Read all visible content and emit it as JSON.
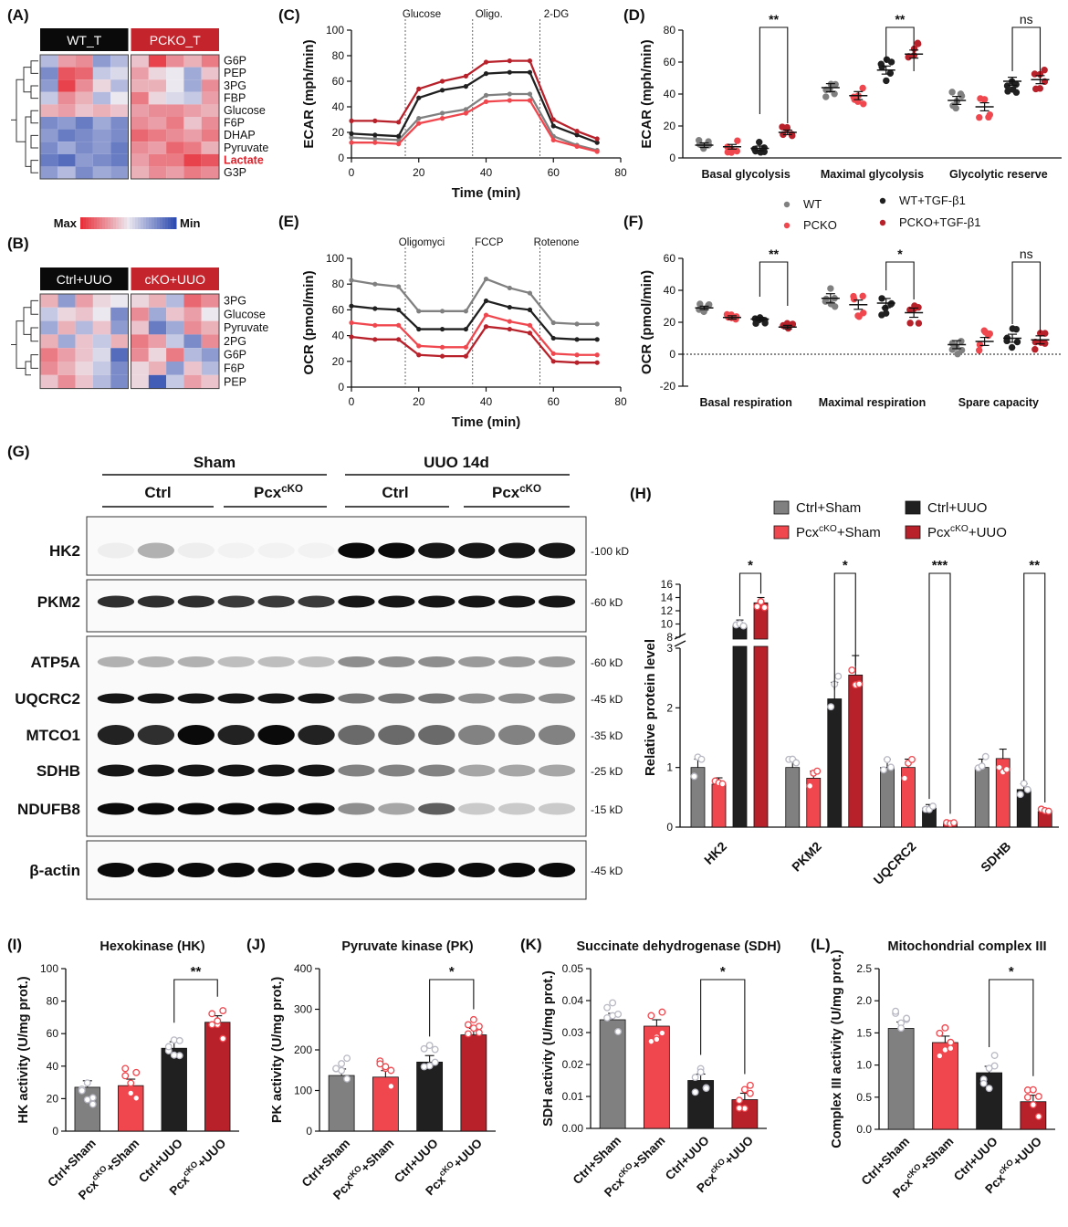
{
  "colors": {
    "wt": "#808080",
    "pcko": "#f0474e",
    "wt_tgf": "#202020",
    "pcko_tgf": "#b8202a",
    "heat_max": "#e8303a",
    "heat_mid": "#ece8f0",
    "heat_min": "#2f4db0"
  },
  "panel_labels": [
    "(A)",
    "(B)",
    "(C)",
    "(D)",
    "(E)",
    "(F)",
    "(G)",
    "(H)",
    "(I)",
    "(J)",
    "(K)",
    "(L)"
  ],
  "heatmap_a": {
    "groups": [
      "WT_T",
      "PCKO_T"
    ],
    "rows": [
      "G6P",
      "PEP",
      "3PG",
      "FBP",
      "Glucose",
      "F6P",
      "DHAP",
      "Pyruvate",
      "Lactate",
      "G3P"
    ],
    "highlight_row": "Lactate",
    "values": [
      [
        -0.3,
        0.4,
        0.5,
        -0.5,
        -0.3,
        0.2,
        0.9,
        0.5,
        0.3,
        0.6
      ],
      [
        -0.6,
        0.8,
        0.7,
        -0.2,
        -0.1,
        0.4,
        0.1,
        0.0,
        -0.4,
        0.2
      ],
      [
        -0.5,
        0.9,
        0.5,
        0.1,
        -0.3,
        0.3,
        0.3,
        0.0,
        -0.4,
        0.5
      ],
      [
        -0.2,
        0.5,
        0.3,
        -0.3,
        0.0,
        0.6,
        0.1,
        -0.1,
        -0.2,
        0.4
      ],
      [
        0.3,
        0.4,
        0.2,
        0.3,
        0.2,
        0.4,
        0.5,
        0.5,
        0.4,
        0.3
      ],
      [
        -0.6,
        -0.5,
        -0.7,
        -0.4,
        -0.6,
        0.5,
        0.4,
        0.6,
        0.2,
        0.5
      ],
      [
        -0.5,
        -0.7,
        -0.6,
        -0.5,
        -0.6,
        0.7,
        0.6,
        0.5,
        0.4,
        0.6
      ],
      [
        -0.6,
        -0.4,
        -0.6,
        -0.5,
        -0.7,
        0.5,
        0.4,
        0.7,
        0.6,
        0.3
      ],
      [
        -0.7,
        -0.8,
        -0.5,
        -0.6,
        -0.7,
        0.4,
        0.6,
        0.6,
        0.9,
        0.8
      ],
      [
        -0.5,
        -0.3,
        -0.6,
        -0.4,
        -0.5,
        0.3,
        0.5,
        0.4,
        0.6,
        0.5
      ]
    ]
  },
  "legend_scale": {
    "max": "Max",
    "min": "Min"
  },
  "heatmap_b": {
    "groups": [
      "Ctrl+UUO",
      "cKO+UUO"
    ],
    "rows": [
      "3PG",
      "Glucose",
      "Pyruvate",
      "2PG",
      "G6P",
      "F6P",
      "PEP"
    ],
    "values": [
      [
        0.3,
        -0.5,
        0.4,
        0.1,
        0.0,
        0.1,
        0.3,
        -0.3,
        0.7,
        0.5
      ],
      [
        -0.2,
        0.1,
        0.2,
        0.0,
        -0.6,
        0.5,
        -0.4,
        0.2,
        0.4,
        0.0
      ],
      [
        -0.4,
        0.3,
        -0.3,
        0.2,
        -0.5,
        0.2,
        -0.7,
        -0.4,
        0.5,
        0.3
      ],
      [
        0.3,
        -0.4,
        0.2,
        -0.2,
        0.3,
        0.6,
        0.4,
        -0.2,
        -0.6,
        0.5
      ],
      [
        0.6,
        0.4,
        0.2,
        -0.1,
        -0.8,
        0.5,
        0.1,
        0.6,
        -0.3,
        -0.5
      ],
      [
        0.5,
        0.3,
        0.1,
        -0.2,
        -0.6,
        0.1,
        0.3,
        -0.5,
        0.2,
        -0.3
      ],
      [
        0.2,
        0.5,
        0.2,
        -0.3,
        -0.6,
        0.1,
        -0.9,
        -0.2,
        0.4,
        0.2
      ]
    ]
  },
  "chart_data": [
    {
      "panel": "C",
      "type": "line",
      "ylabel": "ECAR (mph/min)",
      "xlabel": "Time (min)",
      "xlim": [
        0,
        80
      ],
      "ylim": [
        0,
        100
      ],
      "xticks": [
        "0",
        "20",
        "40",
        "60",
        "80"
      ],
      "yticks": [
        "0",
        "20",
        "40",
        "60",
        "80",
        "100"
      ],
      "injections": [
        {
          "label": "Glucose",
          "x": 16
        },
        {
          "label": "Oligo.",
          "x": 36
        },
        {
          "label": "2-DG",
          "x": 56
        }
      ],
      "x": [
        0,
        7,
        14,
        20,
        27,
        34,
        40,
        47,
        53,
        60,
        67,
        73
      ],
      "series": [
        {
          "name": "WT",
          "values": [
            16,
            15,
            14,
            31,
            35,
            38,
            49,
            50,
            50,
            17,
            10,
            6
          ]
        },
        {
          "name": "PCKO",
          "values": [
            12,
            12,
            11,
            27,
            31,
            35,
            44,
            45,
            45,
            14,
            9,
            5
          ]
        },
        {
          "name": "WT+TGF-β1",
          "values": [
            19,
            18,
            17,
            47,
            53,
            56,
            66,
            67,
            67,
            25,
            18,
            12
          ]
        },
        {
          "name": "PCKO+TGF-β1",
          "values": [
            29,
            29,
            28,
            54,
            60,
            64,
            75,
            76,
            76,
            30,
            21,
            15
          ]
        }
      ]
    },
    {
      "panel": "D",
      "type": "bar",
      "ylabel": "ECAR (mph/min)",
      "ylim": [
        0,
        80
      ],
      "yticks": [
        "0",
        "20",
        "40",
        "60",
        "80"
      ],
      "categories": [
        "Basal glycolysis",
        "Maximal glycolysis",
        "Glycolytic reserve"
      ],
      "series": [
        {
          "name": "WT",
          "values": [
            8,
            44,
            36
          ]
        },
        {
          "name": "PCKO",
          "values": [
            7,
            39,
            32
          ]
        },
        {
          "name": "WT+TGF-β1",
          "values": [
            6,
            55,
            48
          ]
        },
        {
          "name": "PCKO+TGF-β1",
          "values": [
            16,
            65,
            49
          ]
        }
      ],
      "significance": [
        "**",
        "**",
        "ns"
      ]
    },
    {
      "panel": "E",
      "type": "line",
      "ylabel": "OCR (pmol/min)",
      "xlabel": "Time (min)",
      "xlim": [
        0,
        80
      ],
      "ylim": [
        0,
        100
      ],
      "xticks": [
        "0",
        "20",
        "40",
        "60",
        "80"
      ],
      "yticks": [
        "0",
        "20",
        "40",
        "60",
        "80",
        "100"
      ],
      "injections": [
        {
          "label": "Oligomyci",
          "x": 16
        },
        {
          "label": "FCCP",
          "x": 36
        },
        {
          "label": "Rotenone",
          "x": 56
        }
      ],
      "x": [
        0,
        7,
        14,
        20,
        27,
        34,
        40,
        47,
        53,
        60,
        67,
        73
      ],
      "series": [
        {
          "name": "WT",
          "values": [
            83,
            80,
            78,
            59,
            59,
            59,
            84,
            77,
            73,
            50,
            49,
            49
          ]
        },
        {
          "name": "PCKO",
          "values": [
            50,
            48,
            48,
            32,
            31,
            31,
            56,
            51,
            48,
            26,
            25,
            25
          ]
        },
        {
          "name": "WT+TGF-β1",
          "values": [
            63,
            61,
            60,
            45,
            45,
            45,
            67,
            62,
            60,
            38,
            37,
            37
          ]
        },
        {
          "name": "PCKO+TGF-β1",
          "values": [
            39,
            37,
            37,
            25,
            24,
            24,
            47,
            45,
            42,
            20,
            19,
            19
          ]
        }
      ]
    },
    {
      "panel": "F",
      "type": "bar",
      "ylabel": "OCR (pmol/min)",
      "ylim": [
        -20,
        60
      ],
      "yticks": [
        "-20",
        "0",
        "20",
        "40",
        "60"
      ],
      "categories": [
        "Basal respiration",
        "Maximal respiration",
        "Spare capacity"
      ],
      "series": [
        {
          "name": "WT",
          "values": [
            29,
            35,
            6
          ]
        },
        {
          "name": "PCKO",
          "values": [
            23,
            31,
            8
          ]
        },
        {
          "name": "WT+TGF-β1",
          "values": [
            22,
            32,
            10
          ]
        },
        {
          "name": "PCKO+TGF-β1",
          "values": [
            17,
            26,
            9
          ]
        }
      ],
      "significance": [
        "**",
        "*",
        "ns"
      ]
    },
    {
      "panel": "H",
      "type": "bar",
      "ylabel": "Relative protein level",
      "y_break": true,
      "ylim_lower": [
        0,
        3
      ],
      "ylim_upper": [
        8,
        16
      ],
      "yticks": [
        "0",
        "1",
        "2",
        "3",
        "8",
        "10",
        "12",
        "14",
        "16"
      ],
      "categories": [
        "HK2",
        "PKM2",
        "UQCRC2",
        "SDHB"
      ],
      "series": [
        {
          "name": "Ctrl+Sham",
          "values": [
            1.0,
            1.0,
            1.0,
            1.0
          ]
        },
        {
          "name": "PcxcKO+Sham",
          "values": [
            0.72,
            0.82,
            1.0,
            1.15
          ]
        },
        {
          "name": "Ctrl+UUO",
          "values": [
            9.8,
            2.15,
            0.32,
            0.63
          ]
        },
        {
          "name": "PcxcKO+UUO",
          "values": [
            13.2,
            2.55,
            0.07,
            0.26
          ]
        }
      ],
      "significance": [
        "*",
        "*",
        "***",
        "**"
      ]
    },
    {
      "panel": "I",
      "type": "bar",
      "title": "Hexokinase (HK)",
      "ylabel": "HK activity (U/mg prot.)",
      "ylim": [
        0,
        100
      ],
      "yticks": [
        "0",
        "20",
        "40",
        "60",
        "80",
        "100"
      ],
      "categories": [
        "Ctrl+Sham",
        "PcxcKO+Sham",
        "Ctrl+UUO",
        "PcxcKO+UUO"
      ],
      "values": [
        27,
        28,
        51,
        67
      ],
      "significance": "**"
    },
    {
      "panel": "J",
      "type": "bar",
      "title": "Pyruvate kinase (PK)",
      "ylabel": "PK activity (U/mg prot.)",
      "ylim": [
        0,
        400
      ],
      "yticks": [
        "0",
        "100",
        "200",
        "300",
        "400"
      ],
      "categories": [
        "Ctrl+Sham",
        "PcxcKO+Sham",
        "Ctrl+UUO",
        "PcxcKO+UUO"
      ],
      "values": [
        137,
        133,
        170,
        237
      ],
      "significance": "*"
    },
    {
      "panel": "K",
      "type": "bar",
      "title": "Succinate dehydrogenase (SDH)",
      "ylabel": "SDH activity (U/mg prot.)",
      "ylim": [
        0,
        0.05
      ],
      "yticks": [
        "0.00",
        "0.01",
        "0.02",
        "0.03",
        "0.04",
        "0.05"
      ],
      "categories": [
        "Ctrl+Sham",
        "PcxcKO+Sham",
        "Ctrl+UUO",
        "PcxcKO+UUO"
      ],
      "values": [
        0.034,
        0.032,
        0.015,
        0.009
      ],
      "significance": "*"
    },
    {
      "panel": "L",
      "type": "bar",
      "title": "Mitochondrial complex III",
      "ylabel": "Complex III activity (U/mg prot.)",
      "ylim": [
        0,
        2.5
      ],
      "yticks": [
        "0.0",
        "0.5",
        "1.0",
        "1.5",
        "2.0",
        "2.5"
      ],
      "categories": [
        "Ctrl+Sham",
        "PcxcKO+Sham",
        "Ctrl+UUO",
        "PcxcKO+UUO"
      ],
      "values": [
        1.57,
        1.35,
        0.88,
        0.43
      ],
      "significance": "*"
    }
  ],
  "legend_seahorse": [
    "WT",
    "PCKO",
    "WT+TGF-β1",
    "PCKO+TGF-β1"
  ],
  "legend_h": [
    {
      "base": "Ctrl+Sham",
      "sup": ""
    },
    {
      "base": "Pcx",
      "sup": "cKO",
      "tail": "+Sham"
    },
    {
      "base": "Ctrl+UUO",
      "sup": ""
    },
    {
      "base": "Pcx",
      "sup": "cKO",
      "tail": "+UUO"
    }
  ],
  "western": {
    "header_sham": "Sham",
    "header_uuo": "UUO 14d",
    "sub_ctrl": "Ctrl",
    "sub_pcx": "Pcx",
    "sub_pcx_sup": "cKO",
    "proteins": [
      "HK2",
      "PKM2",
      "ATP5A",
      "UQCRC2",
      "MTCO1",
      "SDHB",
      "NDUFB8",
      "β-actin"
    ],
    "sizes": [
      "-100 kD",
      "-60 kD",
      "-60 kD",
      "-45 kD",
      "-35 kD",
      "-25 kD",
      "-15 kD",
      "-45 kD"
    ]
  },
  "xlabels_bottom": [
    {
      "base": "Ctrl+Sham"
    },
    {
      "base": "Pcx",
      "sup": "cKO",
      "tail": "+Sham"
    },
    {
      "base": "Ctrl+UUO"
    },
    {
      "base": "Pcx",
      "sup": "cKO",
      "tail": "+UUO"
    }
  ]
}
